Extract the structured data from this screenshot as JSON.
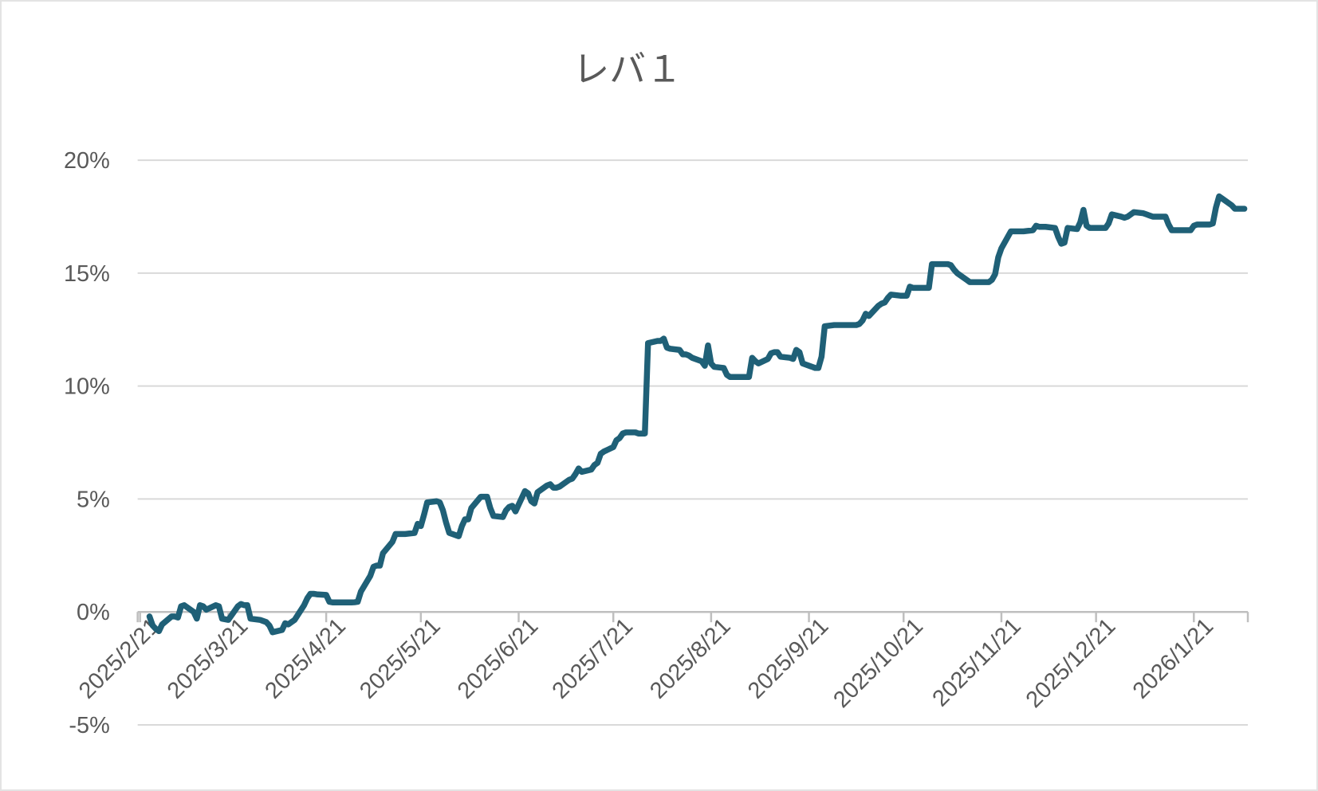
{
  "colors": {
    "line": "#1F6077",
    "gridline": "#D9D9D9",
    "axis": "#BFBFBF",
    "label": "#595959",
    "title": "#595959",
    "background": "#FFFFFF",
    "border": "#E3E3E3"
  },
  "chart_data": {
    "type": "line",
    "title": "レバ１",
    "xlabel": "",
    "ylabel": "",
    "y_unit": "%",
    "ylim": [
      -5,
      20
    ],
    "grid": "horizontal",
    "legend": "none",
    "x_label_rotation": 45,
    "y_ticks": [
      {
        "value": 20,
        "label": "20%"
      },
      {
        "value": 15,
        "label": "15%"
      },
      {
        "value": 10,
        "label": "10%"
      },
      {
        "value": 5,
        "label": "5%"
      },
      {
        "value": 0,
        "label": "0%"
      },
      {
        "value": -5,
        "label": "-5%"
      }
    ],
    "x_ticks": [
      "2025/2/21",
      "2025/3/21",
      "2025/4/21",
      "2025/5/21",
      "2025/6/21",
      "2025/7/21",
      "2025/8/21",
      "2025/9/21",
      "2025/10/21",
      "2025/11/21",
      "2025/12/21",
      "2026/1/21"
    ],
    "x_range": [
      "2025/2/21",
      "2026/2/7"
    ],
    "series": [
      {
        "name": "レバ１",
        "points": [
          [
            "2025/2/24",
            -0.2
          ],
          [
            "2025/2/25",
            -0.6
          ],
          [
            "2025/2/26",
            -0.75
          ],
          [
            "2025/2/27",
            -0.85
          ],
          [
            "2025/2/28",
            -0.55
          ],
          [
            "2025/3/3",
            -0.2
          ],
          [
            "2025/3/4",
            -0.2
          ],
          [
            "2025/3/5",
            -0.25
          ],
          [
            "2025/3/6",
            0.25
          ],
          [
            "2025/3/7",
            0.3
          ],
          [
            "2025/3/10",
            0.0
          ],
          [
            "2025/3/11",
            -0.3
          ],
          [
            "2025/3/12",
            0.3
          ],
          [
            "2025/3/13",
            0.25
          ],
          [
            "2025/3/14",
            0.1
          ],
          [
            "2025/3/17",
            0.3
          ],
          [
            "2025/3/18",
            0.25
          ],
          [
            "2025/3/19",
            -0.3
          ],
          [
            "2025/3/21",
            -0.35
          ],
          [
            "2025/3/24",
            0.25
          ],
          [
            "2025/3/25",
            0.35
          ],
          [
            "2025/3/26",
            0.3
          ],
          [
            "2025/3/27",
            0.3
          ],
          [
            "2025/3/28",
            -0.3
          ],
          [
            "2025/3/31",
            -0.35
          ],
          [
            "2025/4/1",
            -0.4
          ],
          [
            "2025/4/2",
            -0.45
          ],
          [
            "2025/4/3",
            -0.6
          ],
          [
            "2025/4/4",
            -0.9
          ],
          [
            "2025/4/7",
            -0.8
          ],
          [
            "2025/4/8",
            -0.5
          ],
          [
            "2025/4/9",
            -0.55
          ],
          [
            "2025/4/10",
            -0.45
          ],
          [
            "2025/4/11",
            -0.35
          ],
          [
            "2025/4/14",
            0.3
          ],
          [
            "2025/4/15",
            0.6
          ],
          [
            "2025/4/16",
            0.8
          ],
          [
            "2025/4/17",
            0.8
          ],
          [
            "2025/4/18",
            0.78
          ],
          [
            "2025/4/21",
            0.75
          ],
          [
            "2025/4/22",
            0.45
          ],
          [
            "2025/4/23",
            0.42
          ],
          [
            "2025/4/24",
            0.42
          ],
          [
            "2025/4/25",
            0.42
          ],
          [
            "2025/4/28",
            0.42
          ],
          [
            "2025/4/29",
            0.42
          ],
          [
            "2025/4/30",
            0.43
          ],
          [
            "2025/5/1",
            0.45
          ],
          [
            "2025/5/2",
            0.9
          ],
          [
            "2025/5/5",
            1.6
          ],
          [
            "2025/5/6",
            2.0
          ],
          [
            "2025/5/7",
            2.05
          ],
          [
            "2025/5/8",
            2.05
          ],
          [
            "2025/5/9",
            2.6
          ],
          [
            "2025/5/12",
            3.1
          ],
          [
            "2025/5/13",
            3.45
          ],
          [
            "2025/5/14",
            3.45
          ],
          [
            "2025/5/15",
            3.45
          ],
          [
            "2025/5/16",
            3.45
          ],
          [
            "2025/5/19",
            3.5
          ],
          [
            "2025/5/20",
            3.9
          ],
          [
            "2025/5/21",
            3.8
          ],
          [
            "2025/5/22",
            4.3
          ],
          [
            "2025/5/23",
            4.85
          ],
          [
            "2025/5/26",
            4.9
          ],
          [
            "2025/5/27",
            4.85
          ],
          [
            "2025/5/28",
            4.5
          ],
          [
            "2025/5/29",
            3.95
          ],
          [
            "2025/5/30",
            3.5
          ],
          [
            "2025/6/2",
            3.35
          ],
          [
            "2025/6/3",
            3.8
          ],
          [
            "2025/6/4",
            4.1
          ],
          [
            "2025/6/5",
            4.1
          ],
          [
            "2025/6/6",
            4.6
          ],
          [
            "2025/6/9",
            5.1
          ],
          [
            "2025/6/10",
            5.1
          ],
          [
            "2025/6/11",
            5.1
          ],
          [
            "2025/6/12",
            4.6
          ],
          [
            "2025/6/13",
            4.25
          ],
          [
            "2025/6/16",
            4.2
          ],
          [
            "2025/6/17",
            4.5
          ],
          [
            "2025/6/18",
            4.65
          ],
          [
            "2025/6/19",
            4.7
          ],
          [
            "2025/6/20",
            4.45
          ],
          [
            "2025/6/23",
            5.35
          ],
          [
            "2025/6/24",
            5.25
          ],
          [
            "2025/6/25",
            4.9
          ],
          [
            "2025/6/26",
            4.8
          ],
          [
            "2025/6/27",
            5.3
          ],
          [
            "2025/6/30",
            5.6
          ],
          [
            "2025/7/1",
            5.65
          ],
          [
            "2025/7/2",
            5.5
          ],
          [
            "2025/7/3",
            5.5
          ],
          [
            "2025/7/4",
            5.55
          ],
          [
            "2025/7/7",
            5.85
          ],
          [
            "2025/7/8",
            5.9
          ],
          [
            "2025/7/9",
            6.1
          ],
          [
            "2025/7/10",
            6.35
          ],
          [
            "2025/7/11",
            6.2
          ],
          [
            "2025/7/14",
            6.3
          ],
          [
            "2025/7/15",
            6.5
          ],
          [
            "2025/7/16",
            6.6
          ],
          [
            "2025/7/17",
            7.0
          ],
          [
            "2025/7/18",
            7.1
          ],
          [
            "2025/7/21",
            7.3
          ],
          [
            "2025/7/22",
            7.6
          ],
          [
            "2025/7/23",
            7.7
          ],
          [
            "2025/7/24",
            7.9
          ],
          [
            "2025/7/25",
            7.95
          ],
          [
            "2025/7/28",
            7.95
          ],
          [
            "2025/7/29",
            7.9
          ],
          [
            "2025/7/30",
            7.9
          ],
          [
            "2025/7/31",
            7.9
          ],
          [
            "2025/8/1",
            11.9
          ],
          [
            "2025/8/4",
            12.0
          ],
          [
            "2025/8/5",
            12.0
          ],
          [
            "2025/8/6",
            12.1
          ],
          [
            "2025/8/7",
            11.7
          ],
          [
            "2025/8/8",
            11.65
          ],
          [
            "2025/8/11",
            11.6
          ],
          [
            "2025/8/12",
            11.4
          ],
          [
            "2025/8/13",
            11.4
          ],
          [
            "2025/8/14",
            11.35
          ],
          [
            "2025/8/15",
            11.25
          ],
          [
            "2025/8/18",
            11.1
          ],
          [
            "2025/8/19",
            10.9
          ],
          [
            "2025/8/20",
            11.8
          ],
          [
            "2025/8/21",
            11.0
          ],
          [
            "2025/8/22",
            10.85
          ],
          [
            "2025/8/25",
            10.8
          ],
          [
            "2025/8/26",
            10.5
          ],
          [
            "2025/8/27",
            10.4
          ],
          [
            "2025/8/28",
            10.4
          ],
          [
            "2025/8/29",
            10.4
          ],
          [
            "2025/9/1",
            10.4
          ],
          [
            "2025/9/2",
            10.4
          ],
          [
            "2025/9/3",
            11.25
          ],
          [
            "2025/9/4",
            11.1
          ],
          [
            "2025/9/5",
            11.0
          ],
          [
            "2025/9/8",
            11.2
          ],
          [
            "2025/9/9",
            11.45
          ],
          [
            "2025/9/10",
            11.5
          ],
          [
            "2025/9/11",
            11.5
          ],
          [
            "2025/9/12",
            11.3
          ],
          [
            "2025/9/15",
            11.25
          ],
          [
            "2025/9/16",
            11.2
          ],
          [
            "2025/9/17",
            11.6
          ],
          [
            "2025/9/18",
            11.5
          ],
          [
            "2025/9/19",
            11.0
          ],
          [
            "2025/9/22",
            10.85
          ],
          [
            "2025/9/23",
            10.8
          ],
          [
            "2025/9/24",
            10.8
          ],
          [
            "2025/9/25",
            11.3
          ],
          [
            "2025/9/26",
            12.65
          ],
          [
            "2025/9/29",
            12.7
          ],
          [
            "2025/9/30",
            12.7
          ],
          [
            "2025/10/1",
            12.7
          ],
          [
            "2025/10/2",
            12.7
          ],
          [
            "2025/10/3",
            12.7
          ],
          [
            "2025/10/6",
            12.7
          ],
          [
            "2025/10/7",
            12.75
          ],
          [
            "2025/10/8",
            12.9
          ],
          [
            "2025/10/9",
            13.2
          ],
          [
            "2025/10/10",
            13.1
          ],
          [
            "2025/10/13",
            13.55
          ],
          [
            "2025/10/14",
            13.65
          ],
          [
            "2025/10/15",
            13.7
          ],
          [
            "2025/10/16",
            13.9
          ],
          [
            "2025/10/17",
            14.05
          ],
          [
            "2025/10/20",
            14.0
          ],
          [
            "2025/10/21",
            14.0
          ],
          [
            "2025/10/22",
            14.0
          ],
          [
            "2025/10/23",
            14.4
          ],
          [
            "2025/10/24",
            14.35
          ],
          [
            "2025/10/27",
            14.35
          ],
          [
            "2025/10/28",
            14.35
          ],
          [
            "2025/10/29",
            14.35
          ],
          [
            "2025/10/30",
            15.4
          ],
          [
            "2025/10/31",
            15.4
          ],
          [
            "2025/11/3",
            15.4
          ],
          [
            "2025/11/4",
            15.4
          ],
          [
            "2025/11/5",
            15.35
          ],
          [
            "2025/11/6",
            15.15
          ],
          [
            "2025/11/7",
            15.0
          ],
          [
            "2025/11/10",
            14.7
          ],
          [
            "2025/11/11",
            14.6
          ],
          [
            "2025/11/12",
            14.6
          ],
          [
            "2025/11/13",
            14.6
          ],
          [
            "2025/11/14",
            14.6
          ],
          [
            "2025/11/17",
            14.6
          ],
          [
            "2025/11/18",
            14.7
          ],
          [
            "2025/11/19",
            14.95
          ],
          [
            "2025/11/20",
            15.7
          ],
          [
            "2025/11/21",
            16.1
          ],
          [
            "2025/11/24",
            16.85
          ],
          [
            "2025/11/25",
            16.85
          ],
          [
            "2025/11/26",
            16.85
          ],
          [
            "2025/11/27",
            16.85
          ],
          [
            "2025/11/28",
            16.85
          ],
          [
            "2025/12/1",
            16.9
          ],
          [
            "2025/12/2",
            17.1
          ],
          [
            "2025/12/3",
            17.05
          ],
          [
            "2025/12/4",
            17.05
          ],
          [
            "2025/12/5",
            17.05
          ],
          [
            "2025/12/8",
            17.0
          ],
          [
            "2025/12/9",
            16.6
          ],
          [
            "2025/12/10",
            16.3
          ],
          [
            "2025/12/11",
            16.35
          ],
          [
            "2025/12/12",
            17.0
          ],
          [
            "2025/12/15",
            16.95
          ],
          [
            "2025/12/16",
            17.25
          ],
          [
            "2025/12/17",
            17.8
          ],
          [
            "2025/12/18",
            17.1
          ],
          [
            "2025/12/19",
            17.0
          ],
          [
            "2025/12/22",
            17.0
          ],
          [
            "2025/12/23",
            17.0
          ],
          [
            "2025/12/24",
            17.0
          ],
          [
            "2025/12/25",
            17.2
          ],
          [
            "2025/12/26",
            17.6
          ],
          [
            "2025/12/29",
            17.5
          ],
          [
            "2025/12/30",
            17.45
          ],
          [
            "2025/12/31",
            17.5
          ],
          [
            "2026/1/1",
            17.6
          ],
          [
            "2026/1/2",
            17.7
          ],
          [
            "2026/1/5",
            17.65
          ],
          [
            "2026/1/6",
            17.6
          ],
          [
            "2026/1/7",
            17.55
          ],
          [
            "2026/1/8",
            17.5
          ],
          [
            "2026/1/9",
            17.5
          ],
          [
            "2026/1/12",
            17.5
          ],
          [
            "2026/1/13",
            17.15
          ],
          [
            "2026/1/14",
            16.9
          ],
          [
            "2026/1/15",
            16.9
          ],
          [
            "2026/1/16",
            16.9
          ],
          [
            "2026/1/19",
            16.9
          ],
          [
            "2026/1/20",
            16.9
          ],
          [
            "2026/1/21",
            17.1
          ],
          [
            "2026/1/22",
            17.15
          ],
          [
            "2026/1/23",
            17.15
          ],
          [
            "2026/1/26",
            17.15
          ],
          [
            "2026/1/27",
            17.2
          ],
          [
            "2026/1/28",
            17.9
          ],
          [
            "2026/1/29",
            18.4
          ],
          [
            "2026/1/30",
            18.3
          ],
          [
            "2026/2/2",
            18.0
          ],
          [
            "2026/2/3",
            17.85
          ],
          [
            "2026/2/4",
            17.85
          ],
          [
            "2026/2/5",
            17.85
          ],
          [
            "2026/2/6",
            17.85
          ]
        ]
      }
    ]
  }
}
